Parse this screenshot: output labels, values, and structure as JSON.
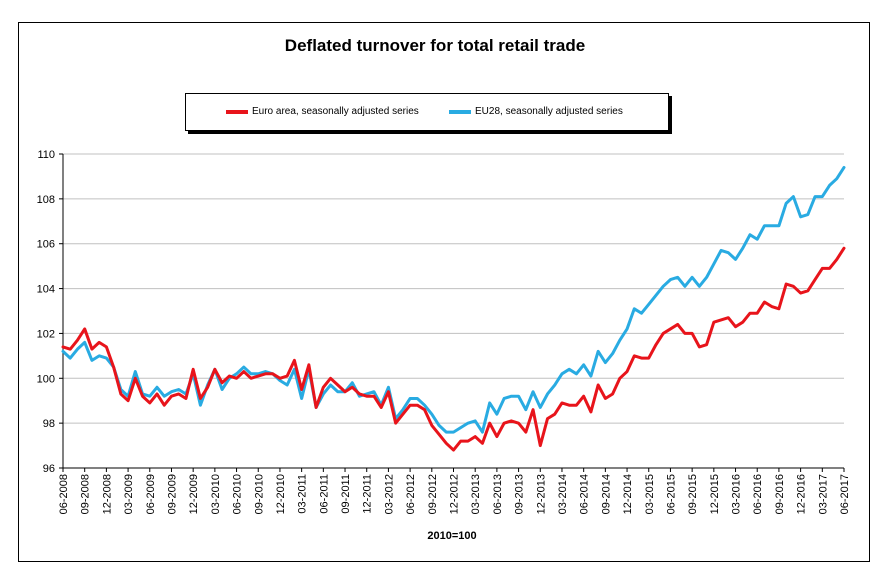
{
  "chart_data": {
    "type": "line",
    "title": "Deflated turnover for total retail trade",
    "xlabel": "2010=100",
    "ylabel": "",
    "ylim": [
      96,
      110
    ],
    "yticks": [
      96,
      98,
      100,
      102,
      104,
      106,
      108,
      110
    ],
    "grid": "horizontal",
    "legend": "top",
    "x_tick_labels": [
      "06-2008",
      "09-2008",
      "12-2008",
      "03-2009",
      "06-2009",
      "09-2009",
      "12-2009",
      "03-2010",
      "06-2010",
      "09-2010",
      "12-2010",
      "03-2011",
      "06-2011",
      "09-2011",
      "12-2011",
      "03-2012",
      "06-2012",
      "09-2012",
      "12-2012",
      "03-2013",
      "06-2013",
      "09-2013",
      "12-2013",
      "03-2014",
      "06-2014",
      "09-2014",
      "12-2014",
      "03-2015",
      "06-2015",
      "09-2015",
      "12-2015",
      "03-2016",
      "06-2016",
      "09-2016",
      "12-2016",
      "03-2017",
      "06-2017"
    ],
    "x_start": "06-2008",
    "x_end": "06-2017",
    "series": [
      {
        "name": "Euro area, seasonally adjusted series",
        "color": "#e8141b",
        "values": [
          101.4,
          101.3,
          101.7,
          102.2,
          101.3,
          101.6,
          101.4,
          100.5,
          99.3,
          99.0,
          100.0,
          99.2,
          98.9,
          99.3,
          98.8,
          99.2,
          99.3,
          99.1,
          100.4,
          99.1,
          99.6,
          100.4,
          99.8,
          100.1,
          100.0,
          100.3,
          100.0,
          100.1,
          100.2,
          100.2,
          100.0,
          100.1,
          100.8,
          99.5,
          100.6,
          98.7,
          99.6,
          100.0,
          99.7,
          99.4,
          99.6,
          99.3,
          99.2,
          99.2,
          98.7,
          99.4,
          98.0,
          98.4,
          98.8,
          98.8,
          98.6,
          97.9,
          97.5,
          97.1,
          96.8,
          97.2,
          97.2,
          97.4,
          97.1,
          98.0,
          97.4,
          98.0,
          98.1,
          98.0,
          97.6,
          98.6,
          97.0,
          98.2,
          98.4,
          98.9,
          98.8,
          98.8,
          99.2,
          98.5,
          99.7,
          99.1,
          99.3,
          100.0,
          100.3,
          101.0,
          100.9,
          100.9,
          101.5,
          102.0,
          102.2,
          102.4,
          102.0,
          102.0,
          101.4,
          101.5,
          102.5,
          102.6,
          102.7,
          102.3,
          102.5,
          102.9,
          102.9,
          103.4,
          103.2,
          103.1,
          104.2,
          104.1,
          103.8,
          103.9,
          104.4,
          104.9,
          104.9,
          105.3,
          105.8
        ]
      },
      {
        "name": "EU28, seasonally adjusted series",
        "color": "#29abe2",
        "values": [
          101.2,
          100.9,
          101.3,
          101.6,
          100.8,
          101.0,
          100.9,
          100.5,
          99.5,
          99.2,
          100.3,
          99.3,
          99.2,
          99.6,
          99.2,
          99.4,
          99.5,
          99.3,
          100.2,
          98.8,
          99.7,
          100.4,
          99.5,
          100.0,
          100.2,
          100.5,
          100.2,
          100.2,
          100.3,
          100.2,
          99.9,
          99.7,
          100.4,
          99.1,
          100.4,
          98.7,
          99.3,
          99.7,
          99.4,
          99.4,
          99.8,
          99.2,
          99.3,
          99.4,
          98.8,
          99.6,
          98.2,
          98.6,
          99.1,
          99.1,
          98.8,
          98.4,
          97.9,
          97.6,
          97.6,
          97.8,
          98.0,
          98.1,
          97.6,
          98.9,
          98.4,
          99.1,
          99.2,
          99.2,
          98.6,
          99.4,
          98.7,
          99.3,
          99.7,
          100.2,
          100.4,
          100.2,
          100.6,
          100.1,
          101.2,
          100.7,
          101.1,
          101.7,
          102.2,
          103.1,
          102.9,
          103.3,
          103.7,
          104.1,
          104.4,
          104.5,
          104.1,
          104.5,
          104.1,
          104.5,
          105.1,
          105.7,
          105.6,
          105.3,
          105.8,
          106.4,
          106.2,
          106.8,
          106.8,
          106.8,
          107.8,
          108.1,
          107.2,
          107.3,
          108.1,
          108.1,
          108.6,
          108.9,
          109.4
        ]
      }
    ]
  }
}
